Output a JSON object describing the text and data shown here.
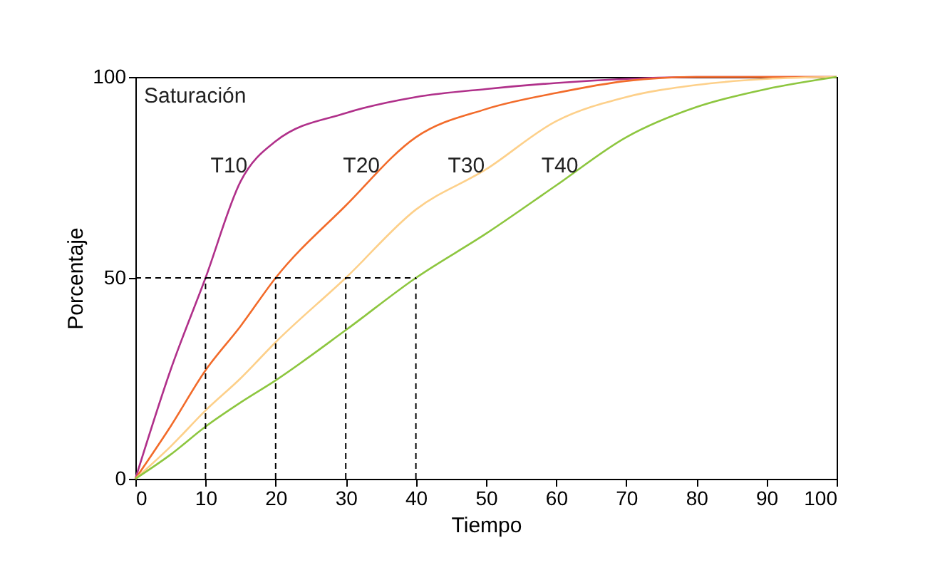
{
  "chart_data": {
    "type": "line",
    "xlabel": "Tiempo",
    "ylabel": "Porcentaje",
    "annotations": [
      "Saturación"
    ],
    "x": [
      0,
      5,
      10,
      15,
      20,
      30,
      40,
      50,
      60,
      70,
      80,
      90,
      100
    ],
    "series": [
      {
        "name": "T10",
        "color": "#b0308a",
        "values": [
          0,
          27,
          50,
          74,
          84,
          91,
          95,
          97,
          98.5,
          99.5,
          100,
          100,
          100
        ]
      },
      {
        "name": "T20",
        "color": "#f26b2a",
        "values": [
          0,
          13,
          27,
          38,
          50,
          68,
          85,
          92,
          96,
          99,
          100,
          100,
          100
        ]
      },
      {
        "name": "T30",
        "color": "#fdd08a",
        "values": [
          0,
          8,
          17,
          25,
          34,
          50,
          67,
          77,
          89,
          95,
          98,
          99.5,
          100
        ]
      },
      {
        "name": "T40",
        "color": "#8dc63f",
        "values": [
          0,
          6,
          13,
          19,
          24.5,
          37,
          50,
          61,
          73,
          85,
          92.5,
          97,
          100
        ]
      }
    ],
    "xlim": [
      0,
      100
    ],
    "ylim": [
      0,
      100
    ],
    "xticks": [
      0,
      10,
      20,
      30,
      40,
      50,
      60,
      70,
      80,
      90,
      100
    ],
    "yticks": [
      0,
      50,
      100
    ],
    "ref_lines": [
      {
        "axis": "y",
        "value": 50,
        "line_style": "dashed"
      },
      {
        "axis": "x",
        "value": 10,
        "line_style": "dashed"
      },
      {
        "axis": "x",
        "value": 20,
        "line_style": "dashed"
      },
      {
        "axis": "x",
        "value": 30,
        "line_style": "dashed"
      },
      {
        "axis": "x",
        "value": 40,
        "line_style": "dashed"
      }
    ],
    "grid": false,
    "legend": false,
    "line_style": "solid",
    "marker": "none"
  }
}
